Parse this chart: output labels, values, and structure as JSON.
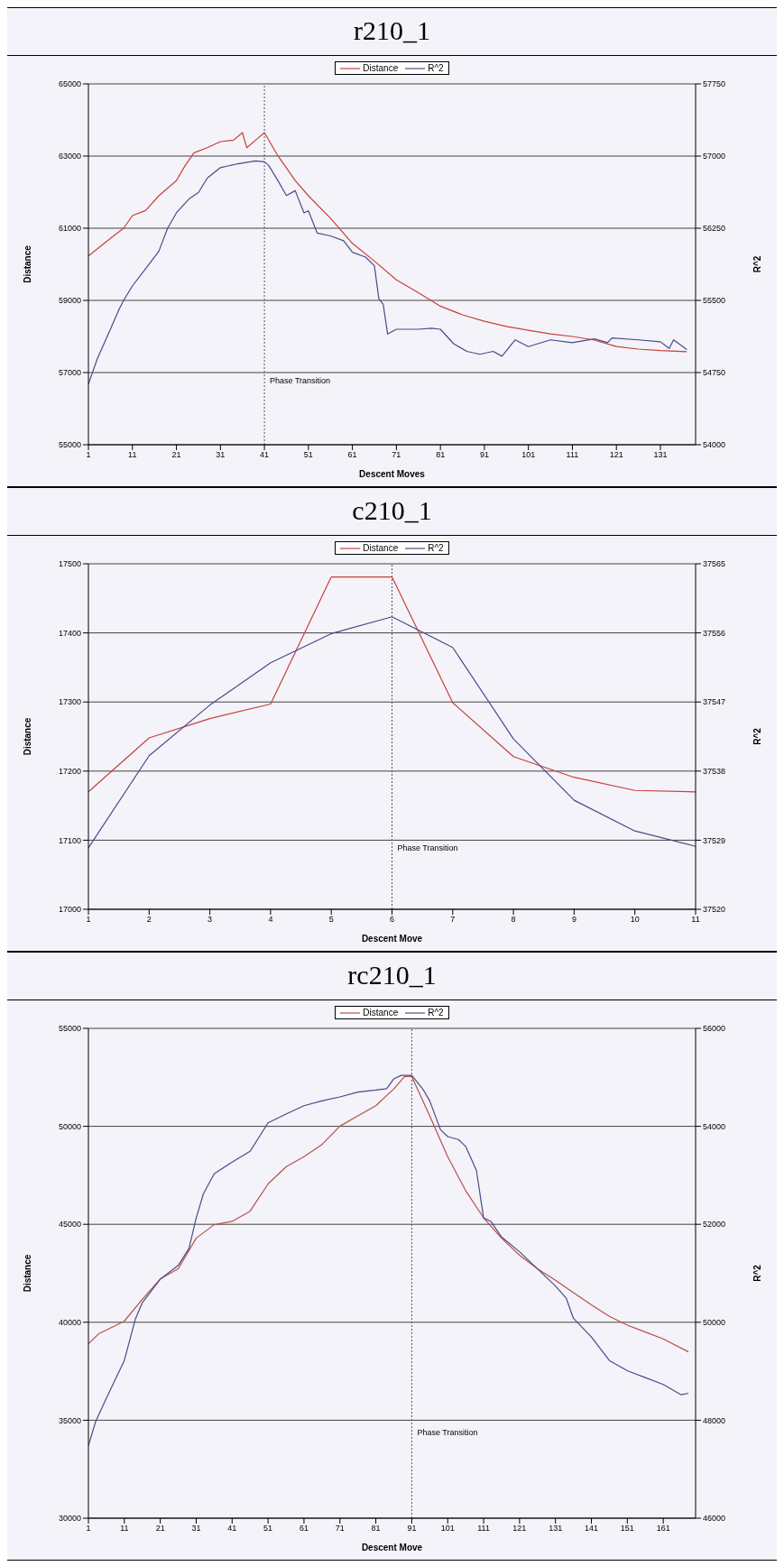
{
  "chart_data": [
    {
      "type": "line",
      "title": "r210_1",
      "xlabel": "Descent Moves",
      "ylabel": "Distance",
      "y2label": "R^2",
      "xlim": [
        1,
        139
      ],
      "xticks": [
        1,
        11,
        21,
        31,
        41,
        51,
        61,
        71,
        81,
        91,
        101,
        111,
        121,
        131
      ],
      "ylim": [
        55000,
        65000
      ],
      "yticks": [
        55000,
        57000,
        59000,
        61000,
        63000,
        65000
      ],
      "y2lim": [
        54000,
        57750
      ],
      "y2ticks": [
        54000,
        54750,
        55500,
        56250,
        57000,
        57750
      ],
      "grid": "y",
      "legend": "top",
      "ref_lines": [
        {
          "axis": "x",
          "value": 41,
          "label": "Phase Transition",
          "line_style": "dotted"
        }
      ],
      "series": [
        {
          "name": "Distance",
          "color": "#c8403c",
          "x": [
            1,
            6,
            9,
            11,
            14,
            17,
            21,
            23,
            25,
            28,
            31,
            34,
            36,
            37,
            39,
            41,
            44,
            48,
            51,
            56,
            61,
            66,
            71,
            76,
            81,
            86,
            91,
            96,
            101,
            106,
            111,
            116,
            121,
            126,
            131,
            137
          ],
          "values": [
            60230,
            60720,
            61000,
            61350,
            61490,
            61900,
            62320,
            62740,
            63090,
            63230,
            63400,
            63440,
            63650,
            63230,
            63440,
            63650,
            63020,
            62320,
            61900,
            61280,
            60580,
            60090,
            59570,
            59210,
            58840,
            58600,
            58420,
            58280,
            58170,
            58070,
            58000,
            57900,
            57720,
            57650,
            57610,
            57580
          ]
        },
        {
          "name": "R^2",
          "color": "#4a4a8a",
          "axis": "y2",
          "x": [
            1,
            3,
            6,
            8,
            9,
            11,
            14,
            17,
            19,
            21,
            24,
            26,
            28,
            31,
            35,
            39,
            41,
            42,
            44,
            46,
            48,
            50,
            51,
            53,
            56,
            59,
            61,
            64,
            66,
            67,
            68,
            69,
            71,
            76,
            79,
            81,
            84,
            87,
            90,
            93,
            95,
            98,
            101,
            106,
            111,
            116,
            119,
            120,
            126,
            131,
            133,
            134,
            137
          ],
          "values": [
            54630,
            54890,
            55200,
            55410,
            55500,
            55650,
            55830,
            56010,
            56250,
            56410,
            56560,
            56620,
            56770,
            56880,
            56920,
            56950,
            56940,
            56900,
            56750,
            56590,
            56640,
            56410,
            56430,
            56200,
            56170,
            56120,
            56000,
            55950,
            55860,
            55520,
            55460,
            55150,
            55200,
            55200,
            55210,
            55200,
            55050,
            54970,
            54940,
            54970,
            54920,
            55090,
            55020,
            55090,
            55060,
            55100,
            55060,
            55110,
            55090,
            55070,
            55000,
            55090,
            54990
          ]
        }
      ]
    },
    {
      "type": "line",
      "title": "c210_1",
      "xlabel": "Descent Move",
      "ylabel": "Distance",
      "y2label": "R^2",
      "categories": [
        "1",
        "2",
        "3",
        "4",
        "5",
        "6",
        "7",
        "8",
        "9",
        "10",
        "11"
      ],
      "ylim": [
        17000,
        17500
      ],
      "yticks": [
        17000,
        17100,
        17200,
        17300,
        17400,
        17500
      ],
      "y2lim": [
        37520,
        37565
      ],
      "y2ticks": [
        37520,
        37529,
        37538,
        37547,
        37556,
        37565
      ],
      "grid": "y",
      "legend": "top",
      "ref_lines": [
        {
          "axis": "x",
          "value": "6",
          "label": "Phase Transition",
          "line_style": "dotted"
        }
      ],
      "series": [
        {
          "name": "Distance",
          "color": "#c8403c",
          "values": [
            17170,
            17248,
            17276,
            17297,
            17481,
            17481,
            17299,
            17221,
            17191,
            17172,
            17170
          ]
        },
        {
          "name": "R^2",
          "color": "#4a4a8a",
          "axis": "y2",
          "values": [
            37528,
            37540,
            37546.6,
            37552.1,
            37555.9,
            37558.1,
            37554.1,
            37542.2,
            37534.2,
            37530.2,
            37528.2
          ]
        }
      ]
    },
    {
      "type": "line",
      "title": "rc210_1",
      "xlabel": "Descent Move",
      "ylabel": "Distance",
      "y2label": "R^2",
      "xlim": [
        1,
        170
      ],
      "xticks": [
        1,
        11,
        21,
        31,
        41,
        51,
        61,
        71,
        81,
        91,
        101,
        111,
        121,
        131,
        141,
        151,
        161
      ],
      "ylim": [
        30000,
        55000
      ],
      "yticks": [
        30000,
        35000,
        40000,
        45000,
        50000,
        55000
      ],
      "y2lim": [
        46000,
        56000
      ],
      "y2ticks": [
        46000,
        48000,
        50000,
        52000,
        54000,
        56000
      ],
      "grid": "y",
      "legend": "top",
      "ref_lines": [
        {
          "axis": "x",
          "value": 91,
          "label": "Phase Transition",
          "line_style": "dotted"
        }
      ],
      "series": [
        {
          "name": "Distance",
          "color": "#b8504a",
          "x": [
            1,
            4,
            8,
            11,
            16,
            21,
            26,
            31,
            36,
            41,
            46,
            51,
            56,
            61,
            66,
            71,
            76,
            81,
            86,
            89,
            91,
            96,
            101,
            106,
            111,
            116,
            121,
            126,
            131,
            136,
            141,
            146,
            151,
            156,
            161,
            168
          ],
          "values": [
            38910,
            39430,
            39780,
            40060,
            41170,
            42210,
            42730,
            44290,
            44980,
            45150,
            45670,
            47060,
            47930,
            48450,
            49070,
            50010,
            50530,
            51050,
            51910,
            52540,
            52540,
            50530,
            48450,
            46720,
            45330,
            44290,
            43420,
            42730,
            42140,
            41510,
            40890,
            40300,
            39850,
            39500,
            39150,
            38490
          ]
        },
        {
          "name": "R^2",
          "color": "#4a4a8a",
          "axis": "y2",
          "x": [
            1,
            3,
            6,
            11,
            14,
            16,
            21,
            26,
            29,
            31,
            33,
            36,
            41,
            46,
            51,
            56,
            61,
            66,
            71,
            76,
            81,
            84,
            86,
            88,
            91,
            94,
            96,
            99,
            101,
            104,
            106,
            109,
            111,
            113,
            116,
            121,
            126,
            131,
            134,
            136,
            141,
            146,
            151,
            156,
            161,
            166,
            168
          ],
          "values": [
            47480,
            47970,
            48450,
            49220,
            50050,
            50400,
            50880,
            51160,
            51510,
            52130,
            52620,
            53030,
            53270,
            53490,
            54070,
            54250,
            54420,
            54520,
            54600,
            54700,
            54740,
            54770,
            54970,
            55040,
            55040,
            54770,
            54520,
            53930,
            53790,
            53730,
            53590,
            53100,
            52130,
            52060,
            51740,
            51440,
            51090,
            50740,
            50490,
            50080,
            49700,
            49220,
            49010,
            48870,
            48730,
            48520,
            48550
          ]
        }
      ]
    }
  ]
}
